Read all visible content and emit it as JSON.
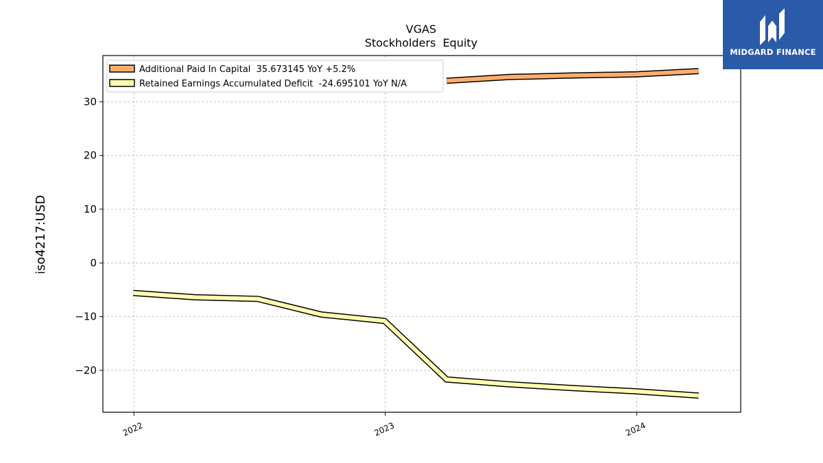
{
  "brand": {
    "name": "MIDGARD FINANCE",
    "logo_icon": "midgard-logo-icon",
    "color": "#2b5aa8"
  },
  "chart_data": {
    "type": "line",
    "title": "VGAS",
    "subtitle": "Stockholders  Equity",
    "xlabel": "",
    "ylabel": "iso4217:USD",
    "x_ticks": [
      "2022",
      "2023",
      "2024"
    ],
    "y_ticks": [
      -20,
      -10,
      0,
      10,
      20,
      30
    ],
    "ylim": [
      -27.8,
      38.6
    ],
    "xlim": [
      "2021-11-17",
      "2024-05-31"
    ],
    "grid": true,
    "legend_position": "top-left",
    "series": [
      {
        "name": "Additional Paid In Capital  35.673145 YoY +5.2%",
        "color": "#fdae6b",
        "x": [
          "2023-03-31",
          "2023-06-30",
          "2023-09-30",
          "2023-12-31",
          "2024-03-31"
        ],
        "values": [
          33.9,
          34.6,
          34.9,
          35.1,
          35.7
        ]
      },
      {
        "name": "Retained Earnings Accumulated Deficit  -24.695101 YoY N/A",
        "color": "#ffffb2",
        "x": [
          "2021-12-31",
          "2022-03-31",
          "2022-06-30",
          "2022-09-30",
          "2022-12-31",
          "2023-03-31",
          "2023-06-30",
          "2023-09-30",
          "2023-12-31",
          "2024-03-31"
        ],
        "values": [
          -5.6,
          -6.4,
          -6.7,
          -9.6,
          -10.8,
          -21.7,
          -22.6,
          -23.3,
          -23.9,
          -24.7
        ]
      }
    ]
  }
}
